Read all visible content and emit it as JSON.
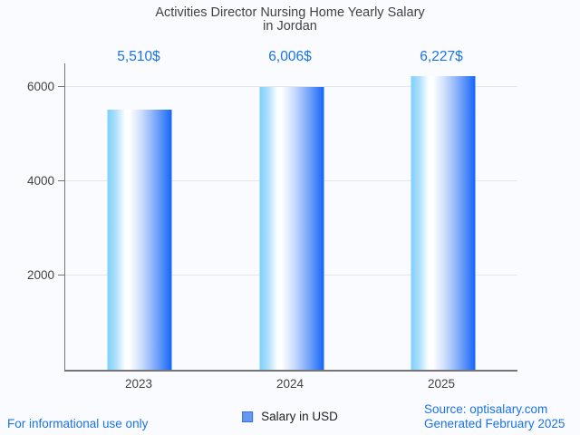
{
  "colors": {
    "bg": "#fafbfe",
    "accent": "#1a73e8",
    "text-dark": "#424242",
    "axis": "#757575",
    "grid": "#e4e7ea",
    "legend-fill": "#6397f0",
    "legend-border": "#3a6fd8",
    "legend-text": "#212121"
  },
  "title": {
    "line1": "Activities Director Nursing Home Yearly Salary",
    "line2": "in Jordan"
  },
  "chart_data": {
    "type": "bar",
    "title": "Activities Director Nursing Home Yearly Salary in Jordan",
    "categories": [
      "2023",
      "2024",
      "2025"
    ],
    "series": [
      {
        "name": "Salary in USD",
        "values": [
          5510,
          6006,
          6227
        ]
      }
    ],
    "values": [
      5510,
      6006,
      6227
    ],
    "value_labels": [
      "5,510$",
      "6,006$",
      "6,227$"
    ],
    "xlabel": "",
    "ylabel": "",
    "ylim": [
      0,
      6500
    ],
    "yticks": [
      2000,
      4000,
      6000
    ],
    "grid": true,
    "legend_position": "bottom",
    "bar_gradient_css": "linear-gradient(90deg, #7cd0fb 0%, #a9defc 12%, #ffffff 28%, #ffffff 34%, #cfdffc 52%, #8fb5fa 70%, #4f8bf8 86%, #1465f8 100%)"
  },
  "legend": {
    "label": "Salary in USD"
  },
  "footer": {
    "left": "For informational use only",
    "source": "Source: optisalary.com",
    "generated": "Generated February 2025"
  }
}
